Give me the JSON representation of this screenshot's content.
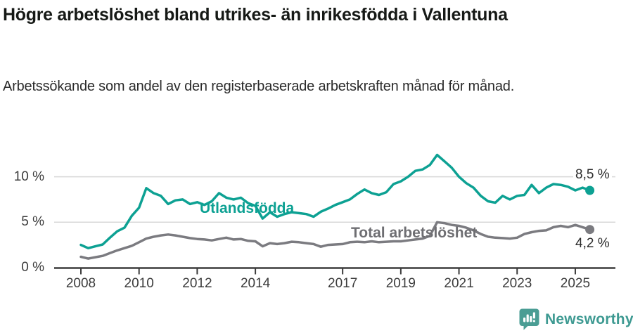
{
  "header": {
    "title": "Högre arbetslöshet bland utrikes- än inrikesfödda i Vallentuna",
    "subtitle": "Arbetssökande som andel av den registerbaserade arbetskraften månad för månad."
  },
  "chart_data": {
    "type": "line",
    "unit": "%",
    "grid": "horizontal-only",
    "legend_position": "inline-labels",
    "x_start": 2008,
    "x_step_years": 0.25,
    "x_axis": {
      "tick_years": [
        2008,
        2010,
        2012,
        2014,
        2017,
        2019,
        2021,
        2023,
        2025
      ],
      "tick_labels": [
        "2008",
        "2010",
        "2012",
        "2014",
        "2017",
        "2019",
        "2021",
        "2023",
        "2025"
      ]
    },
    "y_axis": {
      "tick_values": [
        0,
        5,
        10
      ],
      "tick_labels": [
        "0 %",
        "5 %",
        "10 %"
      ],
      "range": [
        0,
        13.2
      ]
    },
    "series": [
      {
        "id": "utlandsfodda",
        "name": "Utlandsfödda",
        "color": "#0da193",
        "end_label": "8,5 %",
        "end_value": 8.5,
        "values": [
          2.5,
          2.15,
          2.35,
          2.55,
          3.3,
          4.0,
          4.4,
          5.7,
          6.6,
          8.75,
          8.2,
          7.9,
          7.0,
          7.4,
          7.5,
          7.0,
          7.2,
          6.9,
          7.3,
          8.2,
          7.7,
          7.5,
          7.7,
          7.1,
          6.8,
          5.4,
          6.1,
          5.6,
          5.9,
          6.1,
          6.0,
          5.9,
          5.6,
          6.15,
          6.5,
          6.9,
          7.2,
          7.5,
          8.1,
          8.6,
          8.2,
          8.0,
          8.3,
          9.2,
          9.5,
          10.0,
          10.65,
          10.8,
          11.3,
          12.4,
          11.7,
          11.0,
          10.0,
          9.3,
          8.8,
          7.9,
          7.3,
          7.15,
          7.9,
          7.5,
          7.9,
          8.0,
          9.1,
          8.2,
          8.8,
          9.2,
          9.1,
          8.9,
          8.5,
          8.8,
          8.5
        ]
      },
      {
        "id": "total-arbetsloshet",
        "name": "Total arbetslöshet",
        "color": "#7b7b80",
        "label_color": "#6e6e72",
        "end_label": "4,2 %",
        "end_value": 4.2,
        "values": [
          1.2,
          1.0,
          1.15,
          1.3,
          1.6,
          1.9,
          2.15,
          2.4,
          2.8,
          3.2,
          3.4,
          3.55,
          3.65,
          3.55,
          3.4,
          3.25,
          3.15,
          3.1,
          3.0,
          3.15,
          3.3,
          3.1,
          3.15,
          2.95,
          2.9,
          2.35,
          2.7,
          2.6,
          2.7,
          2.85,
          2.8,
          2.7,
          2.6,
          2.3,
          2.5,
          2.55,
          2.6,
          2.8,
          2.85,
          2.8,
          2.9,
          2.8,
          2.85,
          2.9,
          2.9,
          3.0,
          3.1,
          3.2,
          3.5,
          5.0,
          4.9,
          4.7,
          4.6,
          4.4,
          4.1,
          3.7,
          3.4,
          3.3,
          3.25,
          3.2,
          3.3,
          3.7,
          3.9,
          4.05,
          4.1,
          4.45,
          4.6,
          4.45,
          4.7,
          4.45,
          4.2
        ]
      }
    ]
  },
  "footer": {
    "brand": "Newsworthy",
    "brand_color": "#3e9a92",
    "logo_bubble_color": "#4a9d94"
  }
}
